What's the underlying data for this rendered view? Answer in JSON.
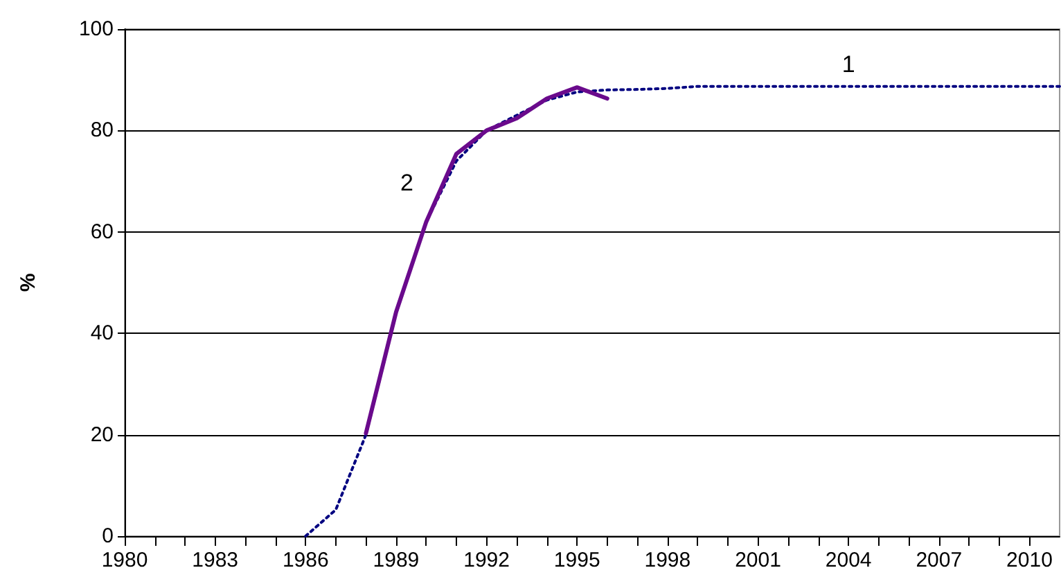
{
  "chart_data": {
    "type": "line",
    "ylabel": "%",
    "xlim": [
      1980,
      2011
    ],
    "ylim": [
      0,
      100
    ],
    "xticks": [
      1980,
      {
        "value": 1981,
        "label": null
      },
      {
        "value": 1982,
        "label": null
      },
      1983,
      {
        "value": 1984,
        "label": null
      },
      {
        "value": 1985,
        "label": null
      },
      1986,
      {
        "value": 1987,
        "label": null
      },
      {
        "value": 1988,
        "label": null
      },
      1989,
      {
        "value": 1990,
        "label": null
      },
      {
        "value": 1991,
        "label": null
      },
      1992,
      {
        "value": 1993,
        "label": null
      },
      {
        "value": 1994,
        "label": null
      },
      1995,
      {
        "value": 1996,
        "label": null
      },
      {
        "value": 1997,
        "label": null
      },
      1998,
      {
        "value": 1999,
        "label": null
      },
      {
        "value": 2000,
        "label": null
      },
      2001,
      {
        "value": 2002,
        "label": null
      },
      {
        "value": 2003,
        "label": null
      },
      2004,
      {
        "value": 2005,
        "label": null
      },
      {
        "value": 2006,
        "label": null
      },
      2007,
      {
        "value": 2008,
        "label": null
      },
      {
        "value": 2009,
        "label": null
      },
      2010
    ],
    "yticks": [
      0,
      20,
      40,
      60,
      80,
      100
    ],
    "grid": "y",
    "marker": "none",
    "series": [
      {
        "name": "1",
        "color": "#000080",
        "line_style": "dotted",
        "x": [
          1986,
          1987,
          1988,
          1989,
          1990,
          1991,
          1992,
          1993,
          1994,
          1995,
          1996,
          1997,
          1998,
          1999,
          2000,
          2001,
          2002,
          2003,
          2004,
          2005,
          2006,
          2007,
          2008,
          2009,
          2010,
          2011
        ],
        "values": [
          0,
          5.2,
          20,
          44,
          62,
          74,
          80,
          83,
          86,
          87.6,
          88,
          88.1,
          88.3,
          88.7,
          88.7,
          88.7,
          88.7,
          88.7,
          88.7,
          88.7,
          88.7,
          88.7,
          88.7,
          88.7,
          88.7,
          88.7
        ]
      },
      {
        "name": "2",
        "color": "#6a0a8c",
        "line_style": "solid",
        "x": [
          1988,
          1989,
          1990,
          1991,
          1992,
          1993,
          1994,
          1995,
          1996
        ],
        "values": [
          20.3,
          44.2,
          62,
          75.4,
          80,
          82.4,
          86.3,
          88.5,
          86.3
        ]
      }
    ]
  }
}
